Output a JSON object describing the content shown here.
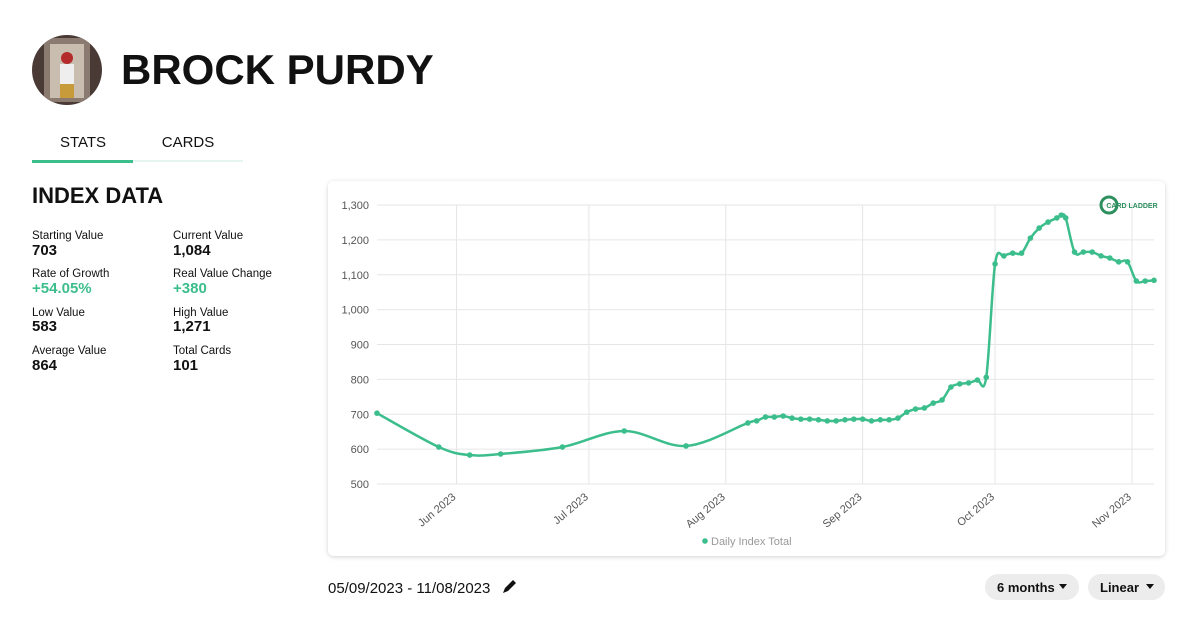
{
  "header": {
    "name": "BROCK PURDY"
  },
  "tabs": [
    "STATS",
    "CARDS"
  ],
  "section_title": "INDEX DATA",
  "stats": [
    {
      "label": "Starting Value",
      "value": "703"
    },
    {
      "label": "Current Value",
      "value": "1,084"
    },
    {
      "label": "Rate of Growth",
      "value": "+54.05%"
    },
    {
      "label": "Real Value Change",
      "value": "+380"
    },
    {
      "label": "Low Value",
      "value": "583"
    },
    {
      "label": "High Value",
      "value": "1,271"
    },
    {
      "label": "Average Value",
      "value": "864"
    },
    {
      "label": "Total Cards",
      "value": "101"
    }
  ],
  "chart_data": {
    "type": "line",
    "logo": "CARD LADDER",
    "x": [
      "2023-05-14",
      "2023-05-28",
      "2023-06-04",
      "2023-06-11",
      "2023-06-25",
      "2023-07-09",
      "2023-07-23",
      "2023-08-06",
      "2023-08-08",
      "2023-08-10",
      "2023-08-12",
      "2023-08-14",
      "2023-08-16",
      "2023-08-18",
      "2023-08-20",
      "2023-08-22",
      "2023-08-24",
      "2023-08-26",
      "2023-08-28",
      "2023-08-30",
      "2023-09-01",
      "2023-09-03",
      "2023-09-05",
      "2023-09-07",
      "2023-09-09",
      "2023-09-11",
      "2023-09-13",
      "2023-09-15",
      "2023-09-17",
      "2023-09-19",
      "2023-09-21",
      "2023-09-23",
      "2023-09-25",
      "2023-09-27",
      "2023-09-29",
      "2023-10-01",
      "2023-10-03",
      "2023-10-05",
      "2023-10-07",
      "2023-10-09",
      "2023-10-11",
      "2023-10-13",
      "2023-10-15",
      "2023-10-16",
      "2023-10-17",
      "2023-10-19",
      "2023-10-21",
      "2023-10-23",
      "2023-10-25",
      "2023-10-27",
      "2023-10-29",
      "2023-10-31",
      "2023-11-02",
      "2023-11-04",
      "2023-11-06"
    ],
    "series": [
      {
        "name": "Daily Index Total",
        "color": "#3cbe8c",
        "values": [
          703,
          606,
          583,
          586,
          606,
          652,
          609,
          675,
          681,
          692,
          692,
          695,
          689,
          686,
          686,
          684,
          681,
          681,
          684,
          686,
          686,
          681,
          684,
          684,
          689,
          706,
          715,
          718,
          732,
          741,
          778,
          787,
          790,
          798,
          806,
          1131,
          1154,
          1162,
          1162,
          1205,
          1234,
          1251,
          1263,
          1271,
          1263,
          1165,
          1165,
          1165,
          1154,
          1148,
          1137,
          1137,
          1082,
          1082,
          1084
        ]
      }
    ],
    "xlim": [
      "2023-05-14",
      "2023-11-06"
    ],
    "xticks": [
      {
        "value": "2023-06-01",
        "label": "Jun 2023"
      },
      {
        "value": "2023-07-01",
        "label": "Jul 2023"
      },
      {
        "value": "2023-08-01",
        "label": "Aug 2023"
      },
      {
        "value": "2023-09-01",
        "label": "Sep 2023"
      },
      {
        "value": "2023-10-01",
        "label": "Oct 2023"
      },
      {
        "value": "2023-11-01",
        "label": "Nov 2023"
      }
    ],
    "ylim": [
      500,
      1300
    ],
    "yticks": [
      500,
      600,
      700,
      800,
      900,
      {
        "value": 1000,
        "label": "1,000"
      },
      {
        "value": 1100,
        "label": "1,100"
      },
      {
        "value": 1200,
        "label": "1,200"
      },
      {
        "value": 1300,
        "label": "1,300"
      }
    ],
    "grid": true
  },
  "date_range": "05/09/2023 - 11/08/2023",
  "controls": [
    "6 months",
    "Linear"
  ]
}
